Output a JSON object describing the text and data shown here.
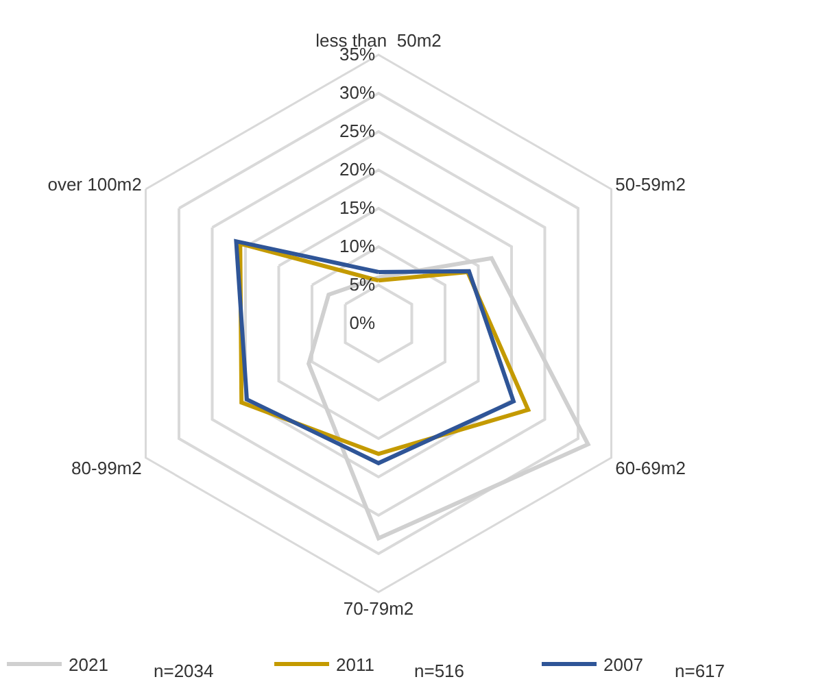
{
  "chart_data": {
    "type": "radar",
    "categories": [
      "less than  50m2",
      "50-59m2",
      "60-69m2",
      "70-79m2",
      "80-99m2",
      "over 100m2"
    ],
    "series": [
      {
        "name": "2021",
        "color": "#d0d0d0",
        "values": [
          6,
          17,
          31.5,
          28,
          10.5,
          7.5
        ]
      },
      {
        "name": "2011",
        "color": "#c49a00",
        "values": [
          5.6,
          13.4,
          22.5,
          17,
          20.6,
          20.8
        ]
      },
      {
        "name": "2007",
        "color": "#2f5597",
        "values": [
          6.7,
          13.6,
          20.3,
          18.2,
          19.8,
          21.4
        ]
      }
    ],
    "annotations": [
      "n=2034",
      "n=516",
      "n=617"
    ],
    "ylim": [
      0,
      35
    ],
    "yticks": [
      {
        "value": 0,
        "label": "0%"
      },
      {
        "value": 5,
        "label": "5%"
      },
      {
        "value": 10,
        "label": "10%"
      },
      {
        "value": 15,
        "label": "15%"
      },
      {
        "value": 20,
        "label": "20%"
      },
      {
        "value": 25,
        "label": "25%"
      },
      {
        "value": 30,
        "label": "30%"
      },
      {
        "value": 35,
        "label": "35%"
      }
    ],
    "grid": true,
    "legend": "bottom",
    "marker": "none",
    "line_style": "solid"
  }
}
